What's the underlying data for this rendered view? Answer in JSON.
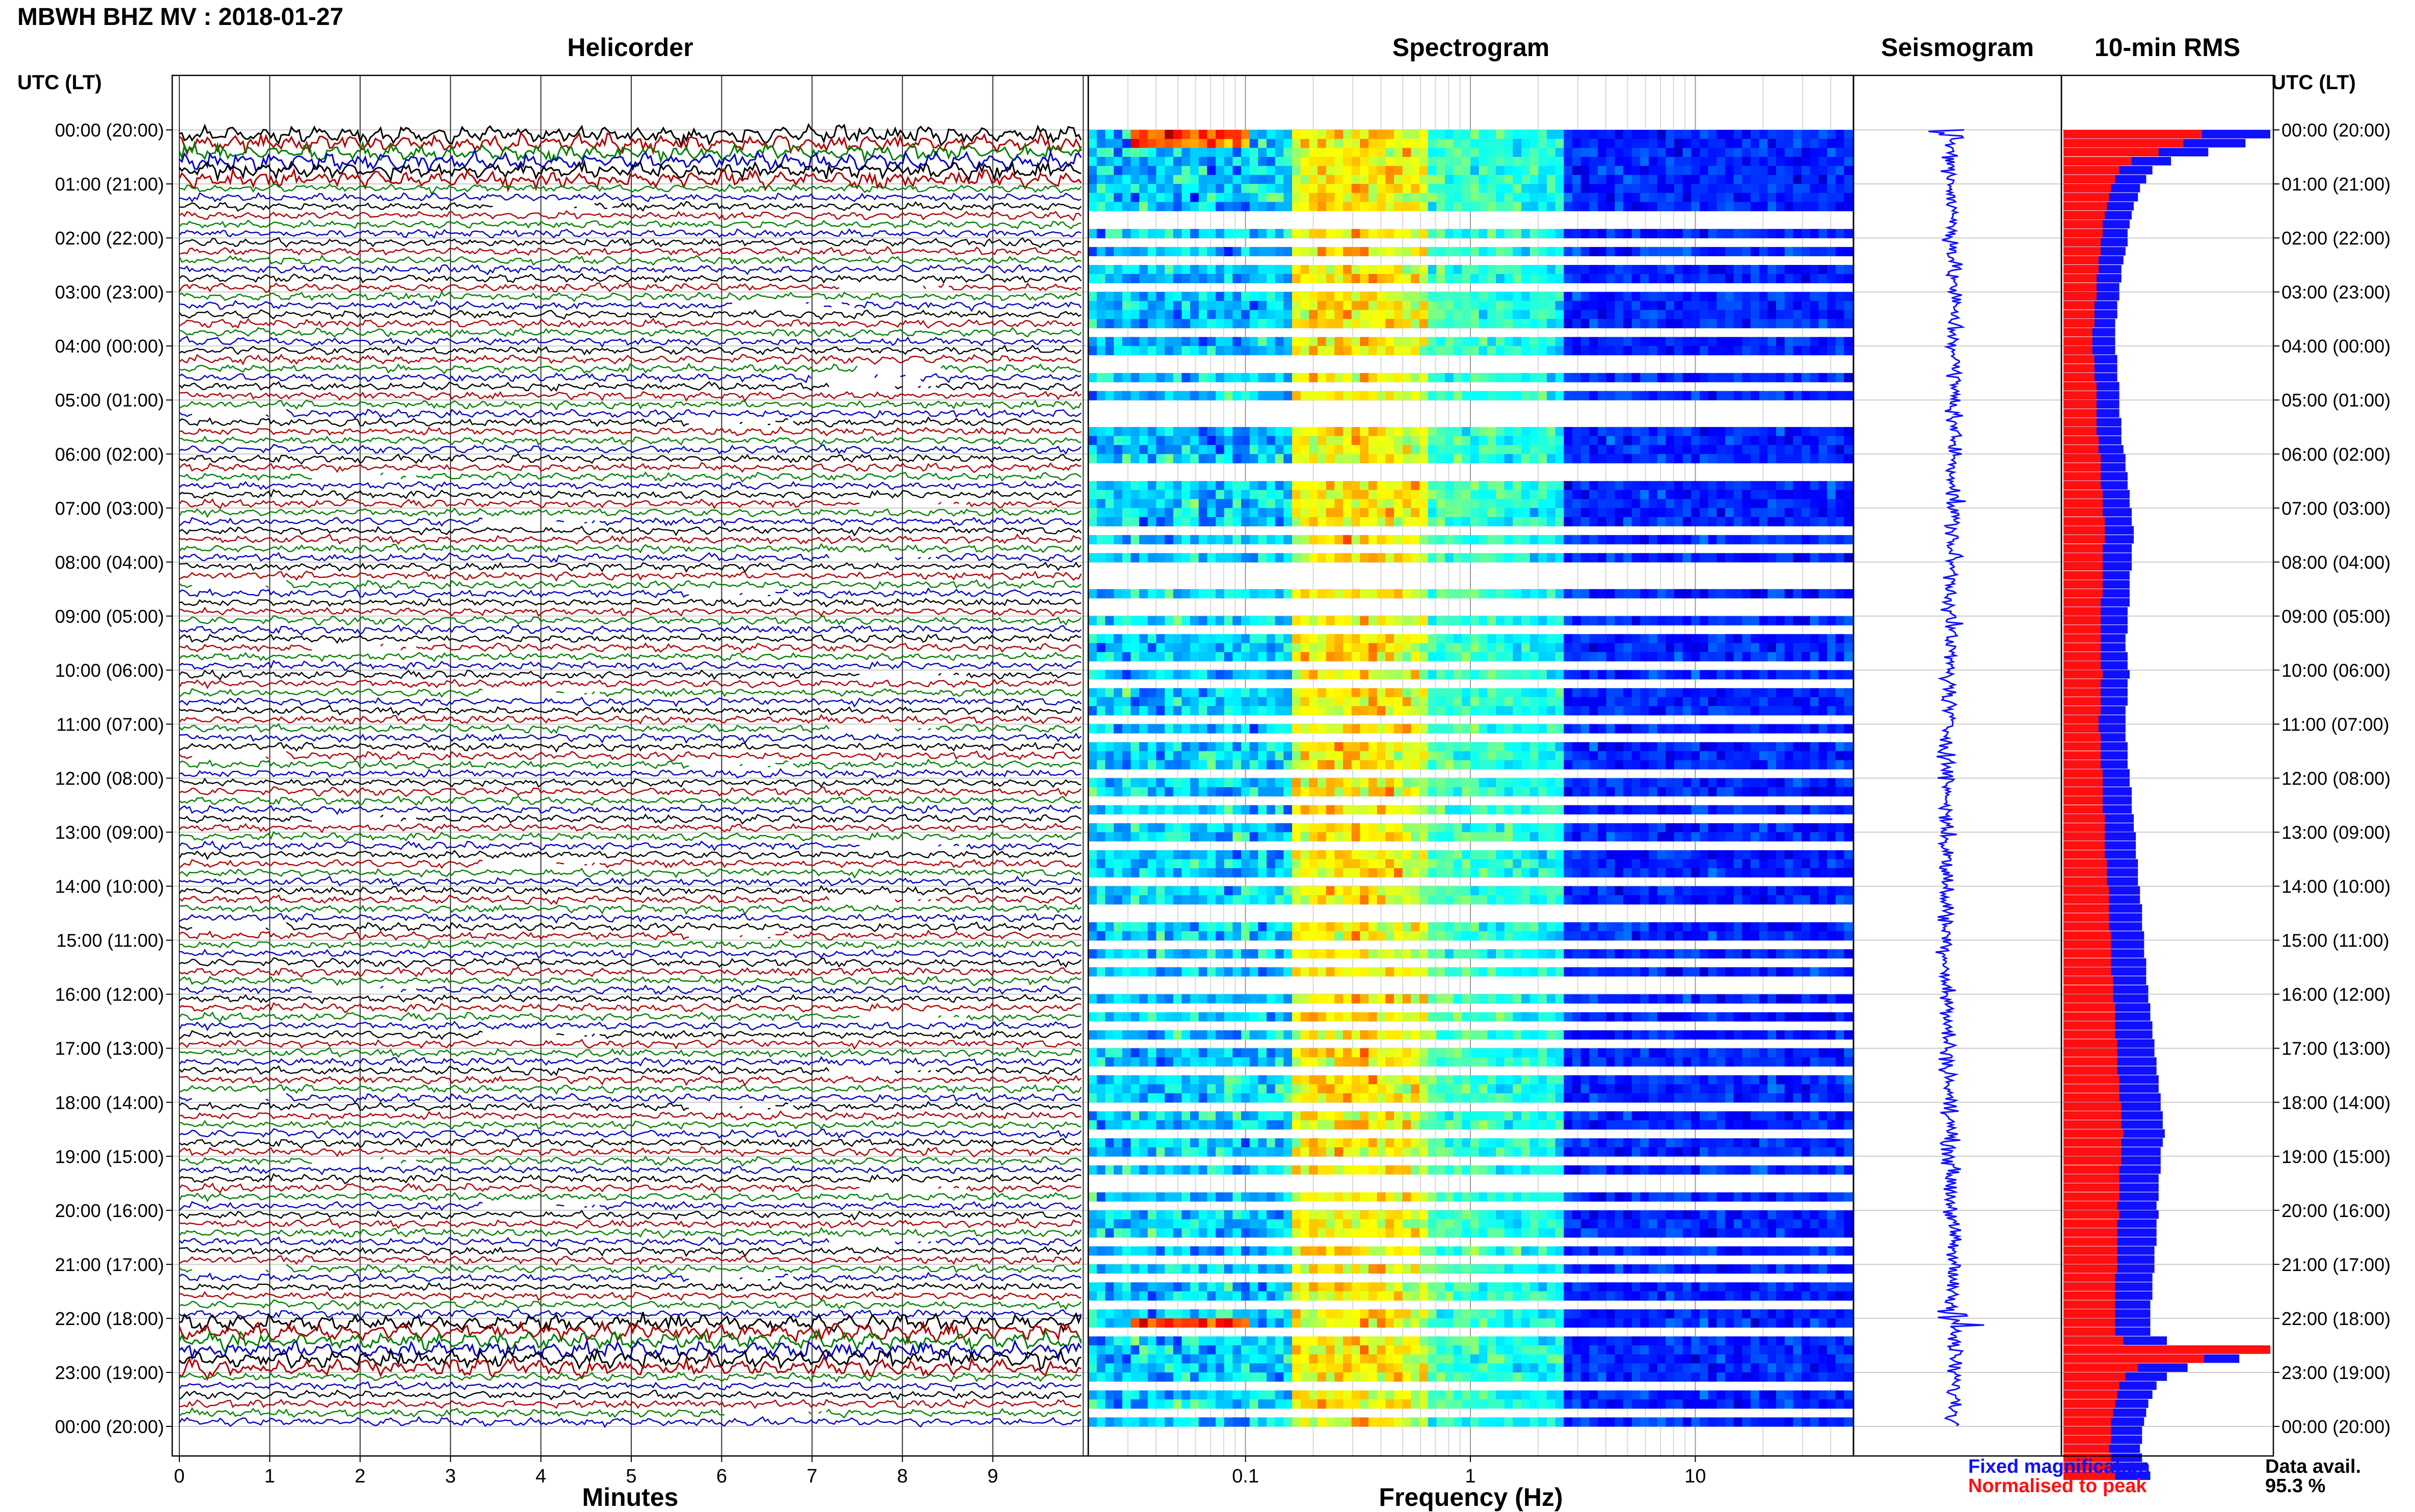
{
  "header": {
    "title": "MBWH BHZ MV : 2018-01-27",
    "utc_label_left": "UTC (LT)",
    "utc_label_right": "UTC (LT)"
  },
  "panels": {
    "helicorder": "Helicorder",
    "spectrogram": "Spectrogram",
    "seismogram": "Seismogram",
    "rms": "10-min RMS"
  },
  "x_axes": {
    "helicorder_label": "Minutes",
    "spectrogram_label": "Frequency (Hz)"
  },
  "legend": {
    "fixed": "Fixed magnification",
    "normalised": "Normalised to peak"
  },
  "data_availability": {
    "label": "Data avail.",
    "value": "95.3 %"
  },
  "colors": {
    "helicorder_traces": [
      "#000000",
      "#b00000",
      "#008000",
      "#0000c8"
    ],
    "fixed_magnification": "#1010ff",
    "normalised_to_peak": "#ff1010"
  },
  "chart_data": [
    {
      "type": "line",
      "panel": "Helicorder",
      "xlabel": "Minutes",
      "x_ticks": [
        "0",
        "1",
        "2",
        "3",
        "4",
        "5",
        "6",
        "7",
        "8",
        "9"
      ],
      "xlim": [
        0,
        10
      ],
      "row_ticks_utc_lt": [
        "00:00 (20:00)",
        "01:00 (21:00)",
        "02:00 (22:00)",
        "03:00 (23:00)",
        "04:00 (00:00)",
        "05:00 (01:00)",
        "06:00 (02:00)",
        "07:00 (03:00)",
        "08:00 (04:00)",
        "09:00 (05:00)",
        "10:00 (06:00)",
        "11:00 (07:00)",
        "12:00 (08:00)",
        "13:00 (09:00)",
        "14:00 (10:00)",
        "15:00 (11:00)",
        "16:00 (12:00)",
        "17:00 (13:00)",
        "18:00 (14:00)",
        "19:00 (15:00)",
        "20:00 (16:00)",
        "21:00 (17:00)",
        "22:00 (18:00)",
        "23:00 (19:00)",
        "00:00 (20:00)"
      ],
      "rows_per_hour": 6,
      "high_amplitude_hours": [
        0,
        22
      ],
      "grid": true
    },
    {
      "type": "heatmap",
      "panel": "Spectrogram",
      "xlabel": "Frequency (Hz)",
      "x_scale": "log",
      "xlim": [
        0.02,
        50
      ],
      "x_ticks": [
        "0.1",
        "1",
        "10"
      ],
      "colormap": "jet",
      "high_energy_bands_hz": [
        [
          0.03,
          0.1
        ]
      ],
      "high_energy_hours": [
        0,
        22
      ],
      "data_gap_rows": [
        9,
        10,
        12,
        14,
        17,
        22,
        25,
        26,
        28,
        30,
        31,
        32,
        37,
        38,
        44,
        46,
        48,
        49,
        50,
        52,
        53,
        55,
        59,
        61,
        65,
        67,
        71,
        74,
        76,
        79,
        83,
        86,
        87,
        90,
        92,
        94,
        95,
        97,
        99,
        101,
        104,
        108,
        111,
        114,
        116,
        117,
        119,
        123,
        125,
        127,
        130,
        133,
        139,
        142,
        144
      ]
    },
    {
      "type": "line",
      "panel": "Seismogram",
      "spike_hours": [
        0,
        22
      ],
      "color": "#1010ff"
    },
    {
      "type": "bar",
      "panel": "10-min RMS",
      "orientation": "horizontal",
      "interval_minutes": 10,
      "series": [
        {
          "name": "Fixed magnification",
          "color": "#1010ff",
          "values": [
            100,
            88,
            70,
            52,
            43,
            40,
            37,
            36,
            34,
            33,
            32,
            31,
            31,
            30,
            29,
            28,
            28,
            27,
            27,
            26,
            26,
            25,
            25,
            25,
            25,
            26,
            26,
            26,
            27,
            27,
            27,
            27,
            28,
            28,
            28,
            29,
            30,
            30,
            31,
            31,
            32,
            32,
            33,
            33,
            34,
            34,
            33,
            33,
            33,
            32,
            32,
            32,
            32,
            31,
            31,
            31,
            30,
            30,
            31,
            31,
            32,
            31,
            31,
            31,
            30,
            30,
            30,
            30,
            31,
            31,
            31,
            32,
            32,
            33,
            33,
            33,
            34,
            34,
            35,
            35,
            35,
            36,
            36,
            36,
            37,
            37,
            38,
            38,
            38,
            39,
            39,
            39,
            40,
            40,
            40,
            41,
            41,
            42,
            42,
            43,
            43,
            44,
            44,
            45,
            45,
            46,
            46,
            47,
            47,
            48,
            48,
            49,
            48,
            47,
            47,
            47,
            46,
            46,
            46,
            45,
            46,
            45,
            45,
            45,
            44,
            44,
            44,
            43,
            43,
            43,
            42,
            42,
            42,
            42,
            50,
            97,
            85,
            60,
            50,
            45,
            43,
            41,
            40,
            39,
            38,
            38,
            37,
            38,
            40,
            42
          ]
        },
        {
          "name": "Normalised to peak",
          "color": "#ff1010",
          "values": [
            67,
            58,
            46,
            33,
            27,
            25,
            23,
            22,
            21,
            20,
            19,
            19,
            18,
            18,
            17,
            17,
            16,
            16,
            16,
            15,
            15,
            15,
            14,
            14,
            14,
            15,
            15,
            15,
            16,
            16,
            16,
            16,
            16,
            16,
            17,
            17,
            18,
            18,
            18,
            18,
            19,
            19,
            19,
            20,
            20,
            20,
            19,
            19,
            19,
            19,
            19,
            19,
            18,
            18,
            18,
            18,
            18,
            18,
            18,
            18,
            19,
            18,
            18,
            18,
            18,
            17,
            17,
            18,
            18,
            18,
            18,
            19,
            19,
            19,
            19,
            19,
            20,
            20,
            20,
            20,
            20,
            21,
            21,
            21,
            22,
            22,
            22,
            22,
            22,
            23,
            23,
            23,
            23,
            23,
            24,
            24,
            24,
            25,
            25,
            25,
            25,
            26,
            26,
            26,
            26,
            27,
            27,
            27,
            28,
            28,
            28,
            29,
            28,
            28,
            28,
            27,
            27,
            27,
            27,
            26,
            27,
            26,
            26,
            26,
            26,
            26,
            26,
            25,
            25,
            25,
            25,
            25,
            25,
            25,
            29,
            100,
            68,
            36,
            30,
            27,
            26,
            25,
            24,
            23,
            23,
            23,
            22,
            23,
            24,
            25
          ]
        }
      ]
    }
  ]
}
